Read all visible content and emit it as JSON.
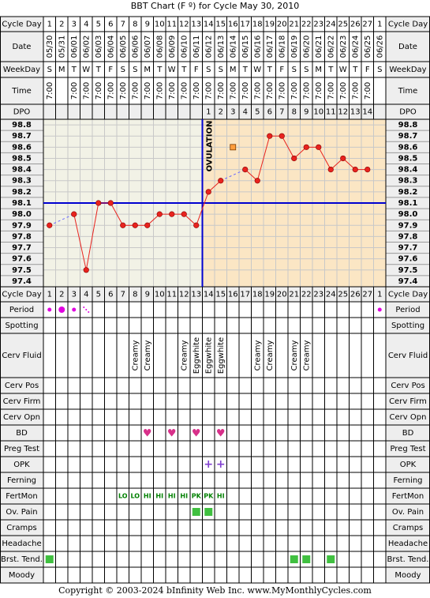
{
  "title": "BBT Chart (F º) for Cycle May 30, 2010",
  "copyright": "Copyright © 2003-2024 bInfinity Web Inc.    www.MyMonthlyCycles.com",
  "ovulation_label": "OVULATION",
  "colors": {
    "grid": "#000000",
    "label_bg": "#eeeeee",
    "pre_ovulation_bg": "#f2f2e6",
    "post_ovulation_bg": "#fbe6c4",
    "temp_line": "#e8231e",
    "temp_point": "#e8231e",
    "interp_line": "#6a6aff",
    "coverline": "#0000d0",
    "ovulation_line": "#0000d0",
    "period_dot": "#e000e0",
    "heart": "#d8308a",
    "opk_plus": "#8040d0",
    "fertmon_text": "#008000",
    "green_square": "#40c040",
    "special_point": "#ff9d3c"
  },
  "row_labels": {
    "cycle_day": "Cycle Day",
    "date": "Date",
    "weekday": "WeekDay",
    "time": "Time",
    "dpo": "DPO",
    "period": "Period",
    "spotting": "Spotting",
    "cerv_fluid": "Cerv Fluid",
    "cerv_pos": "Cerv Pos",
    "cerv_firm": "Cerv Firm",
    "cerv_opn": "Cerv Opn",
    "bd": "BD",
    "preg_test": "Preg Test",
    "opk": "OPK",
    "ferning": "Ferning",
    "fertmon": "FertMon",
    "ov_pain": "Ov. Pain",
    "cramps": "Cramps",
    "headache": "Headache",
    "brst_tend": "Brst. Tend.",
    "moody": "Moody"
  },
  "columns": {
    "cycle_days": [
      "1",
      "2",
      "3",
      "4",
      "5",
      "6",
      "7",
      "8",
      "9",
      "10",
      "11",
      "12",
      "13",
      "14",
      "15",
      "16",
      "17",
      "18",
      "19",
      "20",
      "21",
      "22",
      "23",
      "24",
      "25",
      "26",
      "27",
      "1"
    ],
    "dates": [
      "05/30",
      "05/31",
      "06/01",
      "06/02",
      "06/03",
      "06/04",
      "06/05",
      "06/06",
      "06/07",
      "06/08",
      "06/09",
      "06/10",
      "06/11",
      "06/12",
      "06/13",
      "06/14",
      "06/15",
      "06/16",
      "06/17",
      "06/18",
      "06/19",
      "06/20",
      "06/21",
      "06/22",
      "06/23",
      "06/24",
      "06/25",
      "06/26"
    ],
    "weekdays": [
      "S",
      "M",
      "T",
      "W",
      "T",
      "F",
      "S",
      "S",
      "M",
      "T",
      "W",
      "T",
      "F",
      "S",
      "S",
      "M",
      "T",
      "W",
      "T",
      "F",
      "S",
      "S",
      "M",
      "T",
      "W",
      "T",
      "F",
      "S"
    ],
    "times": [
      "7:00",
      "",
      "7:00",
      "7:00",
      "7:00",
      "7:00",
      "7:00",
      "7:00",
      "7:00",
      "7:00",
      "7:00",
      "7:00",
      "7:00",
      "7:00",
      "7:00",
      "7:00",
      "7:00",
      "7:00",
      "7:00",
      "7:00",
      "7:00",
      "7:00",
      "7:00",
      "7:00",
      "7:00",
      "7:00",
      "7:00",
      ""
    ],
    "dpo": [
      "",
      "",
      "",
      "",
      "",
      "",
      "",
      "",
      "",
      "",
      "",
      "",
      "",
      "1",
      "2",
      "3",
      "4",
      "5",
      "6",
      "7",
      "8",
      "9",
      "10",
      "11",
      "12",
      "13",
      "14",
      ""
    ]
  },
  "chart_data": {
    "type": "line",
    "title": "BBT Chart (F º) for Cycle May 30, 2010",
    "x": [
      1,
      2,
      3,
      4,
      5,
      6,
      7,
      8,
      9,
      10,
      11,
      12,
      13,
      14,
      15,
      16,
      17,
      18,
      19,
      20,
      21,
      22,
      23,
      24,
      25,
      26,
      27
    ],
    "series": [
      {
        "values": [
          97.9,
          null,
          98.0,
          97.5,
          98.1,
          98.1,
          97.9,
          97.9,
          97.9,
          98.0,
          98.0,
          98.0,
          97.9,
          98.2,
          98.3,
          null,
          98.4,
          98.3,
          98.7,
          98.7,
          98.5,
          98.6,
          98.6,
          98.4,
          98.5,
          98.4,
          98.4
        ]
      }
    ],
    "special_points": [
      {
        "x": 16,
        "y": 98.6
      }
    ],
    "y_ticks": [
      "98.8",
      "98.7",
      "98.6",
      "98.5",
      "98.4",
      "98.3",
      "98.2",
      "98.1",
      "98.0",
      "97.9",
      "97.8",
      "97.7",
      "97.6",
      "97.5",
      "97.4"
    ],
    "ylim": [
      97.4,
      98.8
    ],
    "coverline": 98.1,
    "ovulation_after_day": 13,
    "grid": true
  },
  "observations": {
    "period": {
      "1": "dot",
      "2": "bigdot",
      "3": "dot",
      "4": "spot",
      "28": "dot"
    },
    "cerv_fluid": {
      "8": "Creamy",
      "9": "Creamy",
      "12": "Creamy",
      "13": "Eggwhite",
      "14": "Eggwhite",
      "15": "Eggwhite",
      "18": "Creamy",
      "19": "Creamy",
      "21": "Creamy",
      "22": "Creamy"
    },
    "bd": [
      "9",
      "11",
      "13",
      "15"
    ],
    "opk": [
      "14",
      "15"
    ],
    "fertmon": {
      "7": "LO",
      "8": "LO",
      "9": "HI",
      "10": "HI",
      "11": "HI",
      "12": "HI",
      "13": "PK",
      "14": "PK",
      "15": "HI"
    },
    "ov_pain": [
      "13",
      "14"
    ],
    "brst_tend": [
      "1",
      "21",
      "22",
      "24"
    ]
  }
}
